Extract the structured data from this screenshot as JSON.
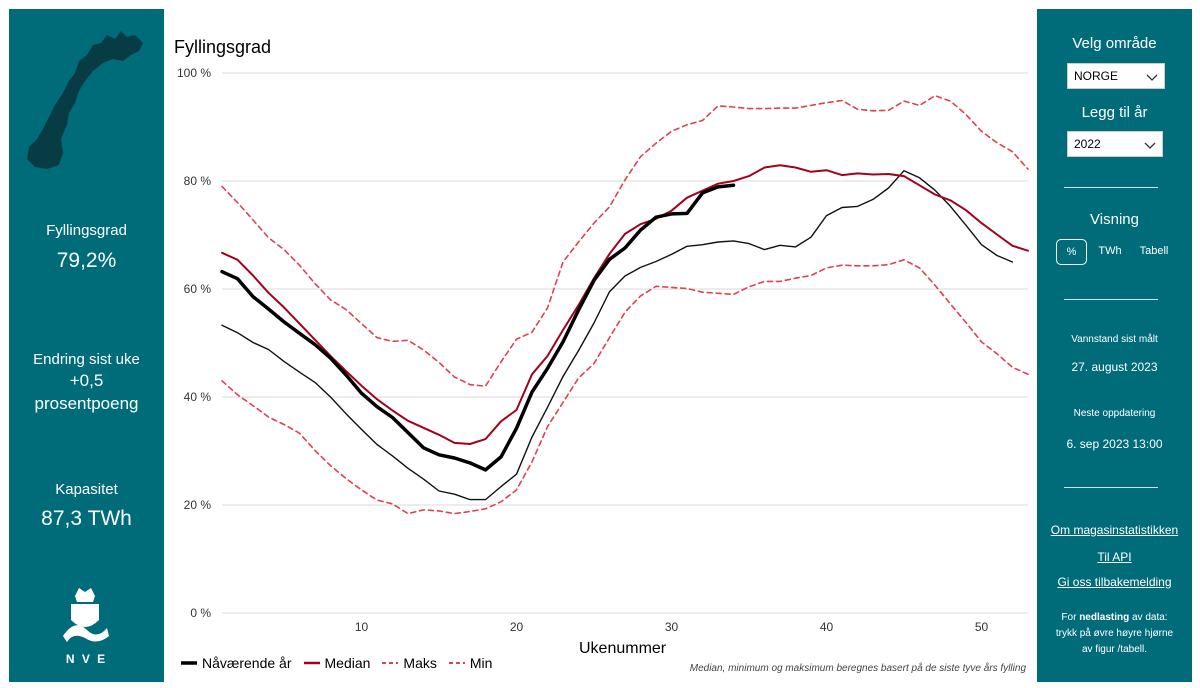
{
  "left_panel": {
    "fill_label": "Fyllingsgrad",
    "fill_value": "79,2%",
    "change_label": "Endring sist uke",
    "change_value": "+0,5",
    "change_unit": "prosentpoeng",
    "capacity_label": "Kapasitet",
    "capacity_value": "87,3 TWh",
    "logo_text": "N V E"
  },
  "right_panel": {
    "area_label": "Velg område",
    "area_value": "NORGE",
    "year_label": "Legg til år",
    "year_value": "2022",
    "view_label": "Visning",
    "view_options": [
      "%",
      "TWh",
      "Tabell"
    ],
    "measured_label": "Vannstand sist målt",
    "measured_value": "27. august 2023",
    "next_label": "Neste oppdatering",
    "next_value": "6. sep 2023 13:00",
    "links": [
      "Om magasinstatistikken",
      "Til API",
      "Gi oss tilbakemelding"
    ],
    "download_note_pre": "For ",
    "download_note_bold": "nedlasting",
    "download_note_post": " av data: trykk på øvre høyre hjørne av figur /tabell."
  },
  "chart": {
    "title": "Fyllingsgrad",
    "xlabel": "Ukenummer",
    "footnote": "Median, minimum og maksimum beregnes basert på de siste tyve års fylling",
    "legend": [
      "Nåværende år",
      "Median",
      "Maks",
      "Min"
    ]
  },
  "colors": {
    "panel": "#006c7a",
    "current": "#000000",
    "median": "#a5001e",
    "band": "#e04050",
    "year2022": "#111111"
  },
  "chart_data": {
    "type": "line",
    "title": "Fyllingsgrad",
    "xlabel": "Ukenummer",
    "ylabel": "",
    "xlim": [
      1,
      53
    ],
    "ylim": [
      0,
      100
    ],
    "xticks": [
      10,
      20,
      30,
      40,
      50
    ],
    "yticks": [
      0,
      20,
      40,
      60,
      80,
      100
    ],
    "ytick_labels": [
      "0 %",
      "20 %",
      "40 %",
      "60 %",
      "80 %",
      "100 %"
    ],
    "grid": true,
    "legend_position": "bottom-left",
    "series": [
      {
        "name": "Nåværende år",
        "style": "bold-solid",
        "x": [
          1,
          2,
          3,
          4,
          5,
          6,
          7,
          8,
          9,
          10,
          11,
          12,
          13,
          14,
          15,
          16,
          17,
          18,
          19,
          20,
          21,
          22,
          23,
          24,
          25,
          26,
          27,
          28,
          29,
          30,
          31,
          32,
          33,
          34
        ],
        "values": [
          63.2,
          61.9,
          58.6,
          56.3,
          53.9,
          51.8,
          49.7,
          47.2,
          44.1,
          40.7,
          38.2,
          36.2,
          33.4,
          30.6,
          29.3,
          28.7,
          27.8,
          26.5,
          28.9,
          34.2,
          40.9,
          45.3,
          50.2,
          56.1,
          61.6,
          65.5,
          67.6,
          70.9,
          73.3,
          73.9,
          74.0,
          77.8,
          78.9,
          79.2
        ]
      },
      {
        "name": "Median",
        "style": "solid",
        "x": [
          1,
          2,
          3,
          4,
          5,
          6,
          7,
          8,
          9,
          10,
          11,
          12,
          13,
          14,
          15,
          16,
          17,
          18,
          19,
          20,
          21,
          22,
          23,
          24,
          25,
          26,
          27,
          28,
          29,
          30,
          31,
          32,
          33,
          34,
          35,
          36,
          37,
          38,
          39,
          40,
          41,
          42,
          43,
          44,
          45,
          46,
          47,
          48,
          49,
          50,
          51,
          52,
          53
        ],
        "values": [
          66.7,
          65.4,
          62.5,
          59.3,
          56.6,
          53.6,
          50.6,
          47.6,
          44.8,
          42.1,
          39.6,
          37.5,
          35.6,
          34.3,
          33.0,
          31.5,
          31.3,
          32.2,
          35.5,
          37.6,
          44.2,
          47.6,
          52.4,
          57.0,
          62.0,
          66.5,
          70.2,
          72.0,
          73.0,
          74.5,
          76.9,
          78.2,
          79.5,
          80.0,
          80.9,
          82.5,
          82.9,
          82.5,
          81.7,
          82.0,
          81.1,
          81.4,
          81.2,
          81.3,
          80.9,
          79.2,
          77.5,
          76.4,
          74.6,
          72.2,
          70.1,
          68.0,
          67.1
        ]
      },
      {
        "name": "Maks",
        "style": "dashed",
        "x": [
          1,
          2,
          3,
          4,
          5,
          6,
          7,
          8,
          9,
          10,
          11,
          12,
          13,
          14,
          15,
          16,
          17,
          18,
          19,
          20,
          21,
          22,
          23,
          24,
          25,
          26,
          27,
          28,
          29,
          30,
          31,
          32,
          33,
          34,
          35,
          36,
          37,
          38,
          39,
          40,
          41,
          42,
          43,
          44,
          45,
          46,
          47,
          48,
          49,
          50,
          51,
          52,
          53
        ],
        "values": [
          79.0,
          76.0,
          72.8,
          69.5,
          67.3,
          64.4,
          61.0,
          58.0,
          56.2,
          53.6,
          51.0,
          50.3,
          50.5,
          48.7,
          46.4,
          43.7,
          42.3,
          42.0,
          46.5,
          50.7,
          52.0,
          56.5,
          65.0,
          68.7,
          72.2,
          75.2,
          80.2,
          84.5,
          87.0,
          89.2,
          90.4,
          91.2,
          93.9,
          93.7,
          93.4,
          93.4,
          93.5,
          93.5,
          94.0,
          94.5,
          94.9,
          93.3,
          93.0,
          93.1,
          94.8,
          94.0,
          95.8,
          94.8,
          92.3,
          89.2,
          87.1,
          85.4,
          82.2
        ]
      },
      {
        "name": "Min",
        "style": "dashed",
        "x": [
          1,
          2,
          3,
          4,
          5,
          6,
          7,
          8,
          9,
          10,
          11,
          12,
          13,
          14,
          15,
          16,
          17,
          18,
          19,
          20,
          21,
          22,
          23,
          24,
          25,
          26,
          27,
          28,
          29,
          30,
          31,
          32,
          33,
          34,
          35,
          36,
          37,
          38,
          39,
          40,
          41,
          42,
          43,
          44,
          45,
          46,
          47,
          48,
          49,
          50,
          51,
          52,
          53
        ],
        "values": [
          43.0,
          40.4,
          38.4,
          36.3,
          34.9,
          33.3,
          30.1,
          27.3,
          24.9,
          22.8,
          20.9,
          20.2,
          18.4,
          19.1,
          18.9,
          18.4,
          18.8,
          19.3,
          20.6,
          22.8,
          28.0,
          34.5,
          39.0,
          43.5,
          46.2,
          51.0,
          55.7,
          58.7,
          60.5,
          60.3,
          60.1,
          59.4,
          59.2,
          59.0,
          60.4,
          61.4,
          61.4,
          62.0,
          62.5,
          63.9,
          64.4,
          64.3,
          64.3,
          64.5,
          65.4,
          63.9,
          60.7,
          57.2,
          53.8,
          50.2,
          48.0,
          45.5,
          44.2
        ]
      },
      {
        "name": "2022",
        "style": "thin-solid",
        "x": [
          1,
          2,
          3,
          4,
          5,
          6,
          7,
          8,
          9,
          10,
          11,
          12,
          13,
          14,
          15,
          16,
          17,
          18,
          19,
          20,
          21,
          22,
          23,
          24,
          25,
          26,
          27,
          28,
          29,
          30,
          31,
          32,
          33,
          34,
          35,
          36,
          37,
          38,
          39,
          40,
          41,
          42,
          43,
          44,
          45,
          46,
          47,
          48,
          49,
          50,
          51,
          52
        ],
        "values": [
          53.3,
          51.9,
          50.1,
          48.8,
          46.6,
          44.6,
          42.7,
          40.0,
          36.9,
          34.0,
          31.2,
          29.1,
          26.8,
          24.8,
          22.6,
          22.0,
          21.0,
          21.0,
          23.4,
          25.7,
          32.6,
          38.1,
          43.8,
          48.6,
          53.7,
          59.5,
          62.4,
          64.0,
          65.1,
          66.4,
          67.9,
          68.2,
          68.7,
          68.9,
          68.4,
          67.3,
          68.1,
          67.8,
          69.6,
          73.6,
          75.1,
          75.3,
          76.6,
          78.7,
          81.9,
          80.6,
          78.3,
          75.3,
          71.8,
          68.2,
          66.2,
          65.0
        ]
      }
    ]
  }
}
